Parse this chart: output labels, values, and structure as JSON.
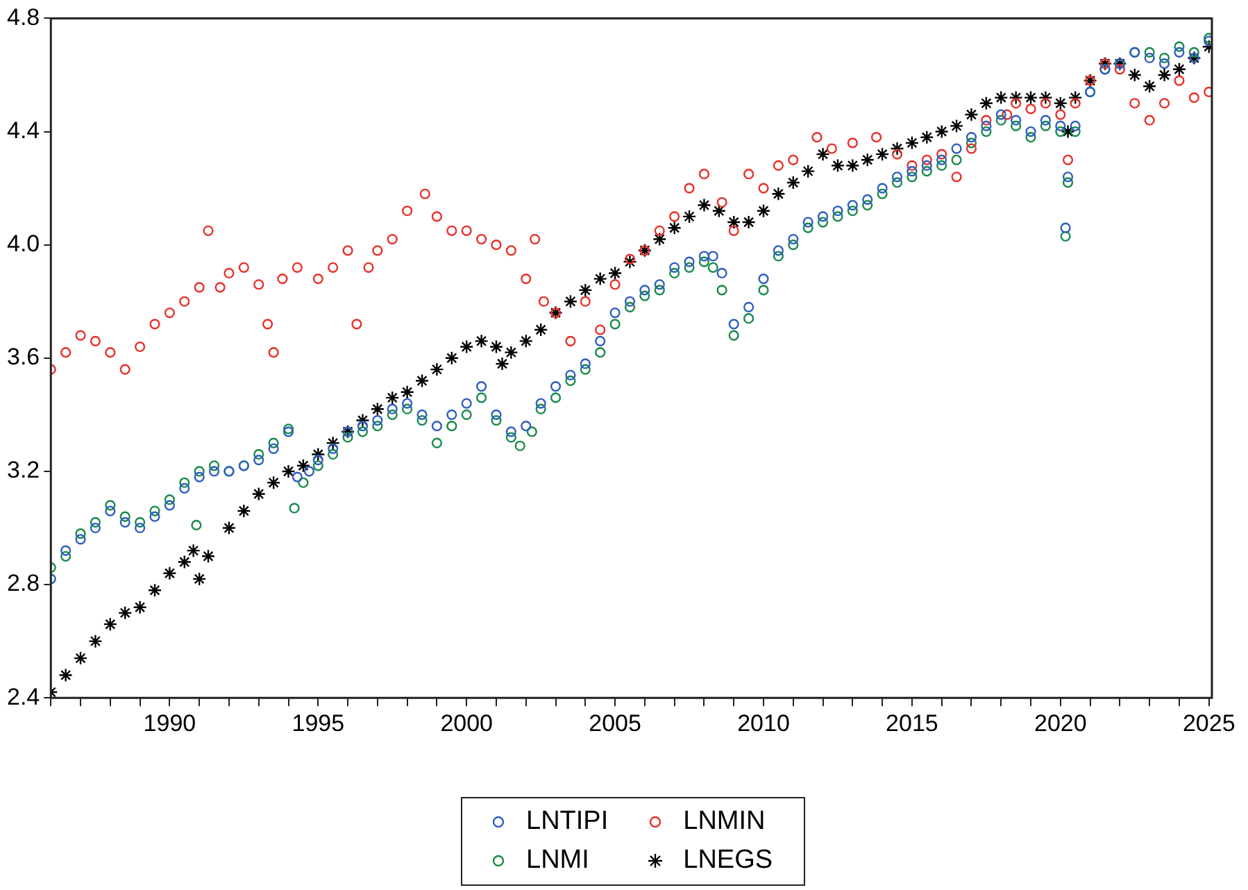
{
  "chart_data": {
    "type": "scatter",
    "xlim": [
      1986,
      2025.1
    ],
    "ylim": [
      2.4,
      4.8
    ],
    "xticks": [
      {
        "value": 1986,
        "label": null
      },
      {
        "value": 1987,
        "label": null
      },
      {
        "value": 1988,
        "label": null
      },
      {
        "value": 1989,
        "label": null
      },
      1990,
      {
        "value": 1991,
        "label": null
      },
      {
        "value": 1992,
        "label": null
      },
      {
        "value": 1993,
        "label": null
      },
      {
        "value": 1994,
        "label": null
      },
      1995,
      {
        "value": 1996,
        "label": null
      },
      {
        "value": 1997,
        "label": null
      },
      {
        "value": 1998,
        "label": null
      },
      {
        "value": 1999,
        "label": null
      },
      2000,
      {
        "value": 2001,
        "label": null
      },
      {
        "value": 2002,
        "label": null
      },
      {
        "value": 2003,
        "label": null
      },
      {
        "value": 2004,
        "label": null
      },
      2005,
      {
        "value": 2006,
        "label": null
      },
      {
        "value": 2007,
        "label": null
      },
      {
        "value": 2008,
        "label": null
      },
      {
        "value": 2009,
        "label": null
      },
      2010,
      {
        "value": 2011,
        "label": null
      },
      {
        "value": 2012,
        "label": null
      },
      {
        "value": 2013,
        "label": null
      },
      {
        "value": 2014,
        "label": null
      },
      2015,
      {
        "value": 2016,
        "label": null
      },
      {
        "value": 2017,
        "label": null
      },
      {
        "value": 2018,
        "label": null
      },
      {
        "value": 2019,
        "label": null
      },
      2020,
      {
        "value": 2021,
        "label": null
      },
      {
        "value": 2022,
        "label": null
      },
      {
        "value": 2023,
        "label": null
      },
      {
        "value": 2024,
        "label": null
      },
      2025
    ],
    "yticks": [
      2.4,
      2.8,
      3.2,
      3.6,
      {
        "value": 4,
        "label": "4.0"
      },
      4.4,
      4.8
    ],
    "legend": "bottom",
    "series": [
      {
        "name": "LNTIPI",
        "color": "#2f5fbf",
        "marker": "circle",
        "x": [
          1986,
          1986.5,
          1987,
          1987.5,
          1988,
          1988.5,
          1989,
          1989.5,
          1990,
          1990.5,
          1991,
          1991.5,
          1992,
          1992.5,
          1993,
          1993.5,
          1994,
          1994.3,
          1994.7,
          1995,
          1995.5,
          1996,
          1996.5,
          1997,
          1997.5,
          1998,
          1998.5,
          1999,
          1999.5,
          2000,
          2000.5,
          2001,
          2001.5,
          2002,
          2002.5,
          2003,
          2003.5,
          2004,
          2004.5,
          2005,
          2005.5,
          2006,
          2006.5,
          2007,
          2007.5,
          2008,
          2008.3,
          2008.6,
          2009,
          2009.5,
          2010,
          2010.5,
          2011,
          2011.5,
          2012,
          2012.5,
          2013,
          2013.5,
          2014,
          2014.5,
          2015,
          2015.5,
          2016,
          2016.5,
          2017,
          2017.5,
          2018,
          2018.5,
          2019,
          2019.5,
          2020,
          2020.17,
          2020.25,
          2020.5,
          2021,
          2021.5,
          2022,
          2022.5,
          2023,
          2023.5,
          2024,
          2024.5,
          2025
        ],
        "values": [
          2.82,
          2.92,
          2.96,
          3.0,
          3.06,
          3.02,
          3.0,
          3.04,
          3.08,
          3.14,
          3.18,
          3.2,
          3.2,
          3.22,
          3.24,
          3.28,
          3.34,
          3.18,
          3.2,
          3.24,
          3.28,
          3.34,
          3.36,
          3.38,
          3.42,
          3.44,
          3.4,
          3.36,
          3.4,
          3.44,
          3.5,
          3.4,
          3.34,
          3.36,
          3.44,
          3.5,
          3.54,
          3.58,
          3.66,
          3.76,
          3.8,
          3.84,
          3.86,
          3.92,
          3.94,
          3.96,
          3.96,
          3.9,
          3.72,
          3.78,
          3.88,
          3.98,
          4.02,
          4.08,
          4.1,
          4.12,
          4.14,
          4.16,
          4.2,
          4.24,
          4.26,
          4.28,
          4.3,
          4.34,
          4.38,
          4.42,
          4.46,
          4.44,
          4.4,
          4.44,
          4.42,
          4.06,
          4.24,
          4.42,
          4.54,
          4.62,
          4.64,
          4.68,
          4.66,
          4.64,
          4.68,
          4.66,
          4.72
        ]
      },
      {
        "name": "LNMIN",
        "color": "#e8302c",
        "marker": "circle",
        "x": [
          1986,
          1986.5,
          1987,
          1987.5,
          1988,
          1988.5,
          1989,
          1989.5,
          1990,
          1990.5,
          1991,
          1991.3,
          1991.7,
          1992,
          1992.5,
          1993,
          1993.3,
          1993.5,
          1993.8,
          1994.3,
          1995,
          1995.5,
          1996,
          1996.3,
          1996.7,
          1997,
          1997.5,
          1998,
          1998.6,
          1999,
          1999.5,
          2000,
          2000.5,
          2001,
          2001.5,
          2002,
          2002.3,
          2002.6,
          2003,
          2003.5,
          2004,
          2004.5,
          2005,
          2005.5,
          2006,
          2006.5,
          2007,
          2007.5,
          2008,
          2008.6,
          2009,
          2009.5,
          2010,
          2010.5,
          2011,
          2011.8,
          2012.3,
          2013,
          2013.8,
          2014.5,
          2015,
          2015.5,
          2016,
          2016.5,
          2017,
          2017.5,
          2018.2,
          2018.5,
          2019,
          2019.5,
          2020,
          2020.25,
          2020.5,
          2021,
          2021.5,
          2022,
          2022.5,
          2023,
          2023.5,
          2024,
          2024.5,
          2025
        ],
        "values": [
          3.56,
          3.62,
          3.68,
          3.66,
          3.62,
          3.56,
          3.64,
          3.72,
          3.76,
          3.8,
          3.85,
          4.05,
          3.85,
          3.9,
          3.92,
          3.86,
          3.72,
          3.62,
          3.88,
          3.92,
          3.88,
          3.92,
          3.98,
          3.72,
          3.92,
          3.98,
          4.02,
          4.12,
          4.18,
          4.1,
          4.05,
          4.05,
          4.02,
          4.0,
          3.98,
          3.88,
          4.02,
          3.8,
          3.76,
          3.66,
          3.8,
          3.7,
          3.86,
          3.95,
          3.98,
          4.05,
          4.1,
          4.2,
          4.25,
          4.15,
          4.05,
          4.25,
          4.2,
          4.28,
          4.3,
          4.38,
          4.34,
          4.36,
          4.38,
          4.32,
          4.28,
          4.3,
          4.32,
          4.24,
          4.34,
          4.44,
          4.46,
          4.5,
          4.48,
          4.5,
          4.46,
          4.3,
          4.5,
          4.58,
          4.64,
          4.62,
          4.5,
          4.44,
          4.5,
          4.58,
          4.52,
          4.54
        ]
      },
      {
        "name": "LNMI",
        "color": "#1a8a4a",
        "marker": "circle",
        "x": [
          1986,
          1986.5,
          1987,
          1987.5,
          1988,
          1988.5,
          1989,
          1989.5,
          1990,
          1990.5,
          1990.9,
          1991,
          1991.5,
          1992,
          1992.5,
          1993,
          1993.5,
          1994,
          1994.2,
          1994.5,
          1995,
          1995.5,
          1996,
          1996.5,
          1997,
          1997.5,
          1998,
          1998.5,
          1999,
          1999.5,
          2000,
          2000.5,
          2001,
          2001.5,
          2001.8,
          2002.2,
          2002.5,
          2003,
          2003.5,
          2004,
          2004.5,
          2005,
          2005.5,
          2006,
          2006.5,
          2007,
          2007.5,
          2008,
          2008.3,
          2008.6,
          2009,
          2009.5,
          2010,
          2010.5,
          2011,
          2011.5,
          2012,
          2012.5,
          2013,
          2013.5,
          2014,
          2014.5,
          2015,
          2015.5,
          2016,
          2016.5,
          2017,
          2017.5,
          2018,
          2018.5,
          2019,
          2019.5,
          2020,
          2020.17,
          2020.25,
          2020.5,
          2021,
          2021.5,
          2022,
          2022.5,
          2023,
          2023.5,
          2024,
          2024.5,
          2025
        ],
        "values": [
          2.86,
          2.9,
          2.98,
          3.02,
          3.08,
          3.04,
          3.02,
          3.06,
          3.1,
          3.16,
          3.01,
          3.2,
          3.22,
          3.2,
          3.22,
          3.26,
          3.3,
          3.35,
          3.07,
          3.16,
          3.22,
          3.26,
          3.32,
          3.34,
          3.36,
          3.4,
          3.42,
          3.38,
          3.3,
          3.36,
          3.4,
          3.46,
          3.38,
          3.32,
          3.29,
          3.34,
          3.42,
          3.46,
          3.52,
          3.56,
          3.62,
          3.72,
          3.78,
          3.82,
          3.84,
          3.9,
          3.92,
          3.94,
          3.92,
          3.84,
          3.68,
          3.74,
          3.84,
          3.96,
          4.0,
          4.06,
          4.08,
          4.1,
          4.12,
          4.14,
          4.18,
          4.22,
          4.24,
          4.26,
          4.28,
          4.3,
          4.36,
          4.4,
          4.44,
          4.42,
          4.38,
          4.42,
          4.4,
          4.03,
          4.22,
          4.4,
          4.54,
          4.62,
          4.64,
          4.68,
          4.68,
          4.66,
          4.7,
          4.68,
          4.73
        ]
      },
      {
        "name": "LNEGS",
        "color": "#000000",
        "marker": "cross",
        "x": [
          1986,
          1986.5,
          1987,
          1987.5,
          1988,
          1988.5,
          1989,
          1989.5,
          1990,
          1990.5,
          1990.8,
          1991,
          1991.3,
          1992,
          1992.5,
          1993,
          1993.5,
          1994,
          1994.5,
          1995,
          1995.5,
          1996,
          1996.5,
          1997,
          1997.5,
          1998,
          1998.5,
          1999,
          1999.5,
          2000,
          2000.5,
          2001,
          2001.2,
          2001.5,
          2002,
          2002.5,
          2003,
          2003.5,
          2004,
          2004.5,
          2005,
          2005.5,
          2006,
          2006.5,
          2007,
          2007.5,
          2008,
          2008.5,
          2009,
          2009.5,
          2010,
          2010.5,
          2011,
          2011.5,
          2012,
          2012.5,
          2013,
          2013.5,
          2014,
          2014.5,
          2015,
          2015.5,
          2016,
          2016.5,
          2017,
          2017.5,
          2018,
          2018.5,
          2019,
          2019.5,
          2020,
          2020.25,
          2020.5,
          2021,
          2021.5,
          2022,
          2022.5,
          2023,
          2023.5,
          2024,
          2024.5,
          2025
        ],
        "values": [
          2.42,
          2.48,
          2.54,
          2.6,
          2.66,
          2.7,
          2.72,
          2.78,
          2.84,
          2.88,
          2.92,
          2.82,
          2.9,
          3.0,
          3.06,
          3.12,
          3.16,
          3.2,
          3.22,
          3.26,
          3.3,
          3.34,
          3.38,
          3.42,
          3.46,
          3.48,
          3.52,
          3.56,
          3.6,
          3.64,
          3.66,
          3.64,
          3.58,
          3.62,
          3.66,
          3.7,
          3.76,
          3.8,
          3.84,
          3.88,
          3.9,
          3.94,
          3.98,
          4.02,
          4.06,
          4.1,
          4.14,
          4.12,
          4.08,
          4.08,
          4.12,
          4.18,
          4.22,
          4.26,
          4.32,
          4.28,
          4.28,
          4.3,
          4.32,
          4.34,
          4.36,
          4.38,
          4.4,
          4.42,
          4.46,
          4.5,
          4.52,
          4.52,
          4.52,
          4.52,
          4.5,
          4.4,
          4.52,
          4.58,
          4.64,
          4.64,
          4.6,
          4.56,
          4.6,
          4.62,
          4.66,
          4.7
        ]
      }
    ]
  }
}
